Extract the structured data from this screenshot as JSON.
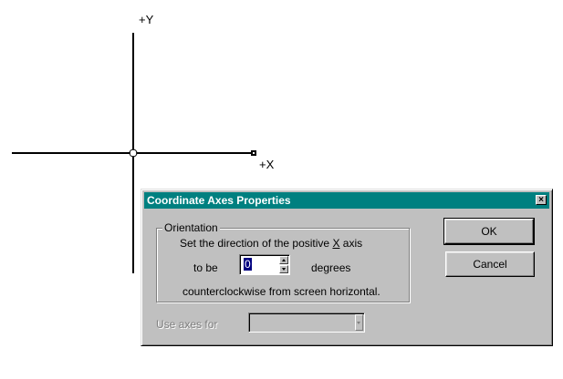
{
  "canvas": {
    "y_axis_label": "+Y",
    "x_axis_label": "+X"
  },
  "dialog": {
    "title": "Coordinate Axes Properties",
    "close_glyph": "×",
    "orientation": {
      "group_label": "Orientation",
      "direction_text_prefix": "Set the direction of the positive ",
      "direction_text_axis": "X",
      "direction_text_suffix": " axis",
      "to_be_label": "to be",
      "degrees_value": "0",
      "degrees_label": "degrees",
      "ccw_text": "counterclockwise from screen horizontal."
    },
    "buttons": {
      "ok_label": "OK",
      "cancel_label": "Cancel"
    },
    "use_axes": {
      "label": "Use axes for",
      "selected_value": ""
    }
  },
  "colors": {
    "titlebar": "#008080",
    "dialog_face": "#c0c0c0",
    "selection": "#000080"
  }
}
